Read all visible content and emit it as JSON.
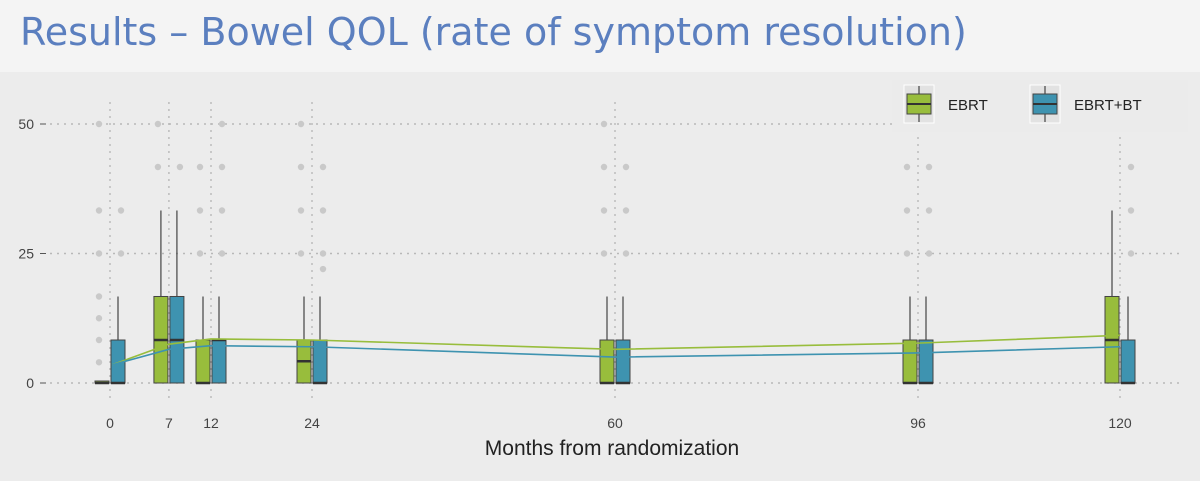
{
  "slide": {
    "title": "Results – Bowel QOL (rate of symptom resolution)"
  },
  "colors": {
    "ebrt": "#98bd3c",
    "ebrt_bt": "#3e93b0",
    "grid": "#b8b8b8",
    "outlier": "#c9c9c9",
    "median": "#333333",
    "title": "#5b7fbf"
  },
  "chart_data": {
    "type": "box",
    "xlabel": "Months from randomization",
    "ylabel": "",
    "x_ticks": [
      0,
      7,
      12,
      24,
      60,
      96,
      120
    ],
    "y_ticks": [
      0,
      25,
      50
    ],
    "ylim": [
      0,
      55
    ],
    "xlim": [
      -10,
      126
    ],
    "grid": true,
    "legend_position": "top-right",
    "series": [
      {
        "name": "EBRT",
        "boxes": [
          {
            "x": 0,
            "whisker_low": 0,
            "q1": 0,
            "median": 0,
            "q3": 0,
            "whisker_high": 0,
            "outliers": [
              4,
              8.3,
              12.5,
              16.7,
              25,
              33.3,
              50
            ]
          },
          {
            "x": 7,
            "whisker_low": 0,
            "q1": 0,
            "median": 8.3,
            "q3": 16.7,
            "whisker_high": 33.3,
            "outliers": [
              41.7,
              50
            ]
          },
          {
            "x": 12,
            "whisker_low": 0,
            "q1": 0,
            "median": 0,
            "q3": 8.3,
            "whisker_high": 16.7,
            "outliers": [
              25,
              33.3,
              41.7
            ]
          },
          {
            "x": 24,
            "whisker_low": 0,
            "q1": 0,
            "median": 4.2,
            "q3": 8.3,
            "whisker_high": 16.7,
            "outliers": [
              25,
              33.3,
              41.7,
              50
            ]
          },
          {
            "x": 60,
            "whisker_low": 0,
            "q1": 0,
            "median": 0,
            "q3": 8.3,
            "whisker_high": 16.7,
            "outliers": [
              25,
              33.3,
              41.7,
              50
            ]
          },
          {
            "x": 96,
            "whisker_low": 0,
            "q1": 0,
            "median": 0,
            "q3": 8.3,
            "whisker_high": 16.7,
            "outliers": [
              25,
              33.3,
              41.7,
              50
            ]
          },
          {
            "x": 120,
            "whisker_low": 0,
            "q1": 0,
            "median": 8.3,
            "q3": 16.7,
            "whisker_high": 33.3,
            "outliers": []
          }
        ],
        "trend": [
          [
            0,
            3.5
          ],
          [
            7,
            7.5
          ],
          [
            12,
            8.5
          ],
          [
            24,
            8.3
          ],
          [
            60,
            6.5
          ],
          [
            96,
            7.7
          ],
          [
            120,
            9.2
          ]
        ]
      },
      {
        "name": "EBRT+BT",
        "boxes": [
          {
            "x": 0,
            "whisker_low": 0,
            "q1": 0,
            "median": 0,
            "q3": 8.3,
            "whisker_high": 16.7,
            "outliers": [
              25,
              33.3
            ]
          },
          {
            "x": 7,
            "whisker_low": 0,
            "q1": 0,
            "median": 8.3,
            "q3": 16.7,
            "whisker_high": 33.3,
            "outliers": [
              41.7
            ]
          },
          {
            "x": 12,
            "whisker_low": 0,
            "q1": 0,
            "median": 8.3,
            "q3": 8.3,
            "whisker_high": 16.7,
            "outliers": [
              25,
              33.3,
              41.7,
              50
            ]
          },
          {
            "x": 24,
            "whisker_low": 0,
            "q1": 0,
            "median": 0,
            "q3": 8.3,
            "whisker_high": 16.7,
            "outliers": [
              22,
              25,
              33.3,
              41.7
            ]
          },
          {
            "x": 60,
            "whisker_low": 0,
            "q1": 0,
            "median": 0,
            "q3": 8.3,
            "whisker_high": 16.7,
            "outliers": [
              25,
              33.3,
              41.7
            ]
          },
          {
            "x": 96,
            "whisker_low": 0,
            "q1": 0,
            "median": 0,
            "q3": 8.3,
            "whisker_high": 16.7,
            "outliers": [
              25,
              33.3,
              41.7
            ]
          },
          {
            "x": 120,
            "whisker_low": 0,
            "q1": 0,
            "median": 0,
            "q3": 8.3,
            "whisker_high": 16.7,
            "outliers": [
              25,
              33.3,
              41.7
            ]
          }
        ],
        "trend": [
          [
            0,
            3.5
          ],
          [
            7,
            6.5
          ],
          [
            12,
            7.2
          ],
          [
            24,
            7
          ],
          [
            60,
            5
          ],
          [
            96,
            5.8
          ],
          [
            120,
            7
          ]
        ]
      }
    ]
  }
}
